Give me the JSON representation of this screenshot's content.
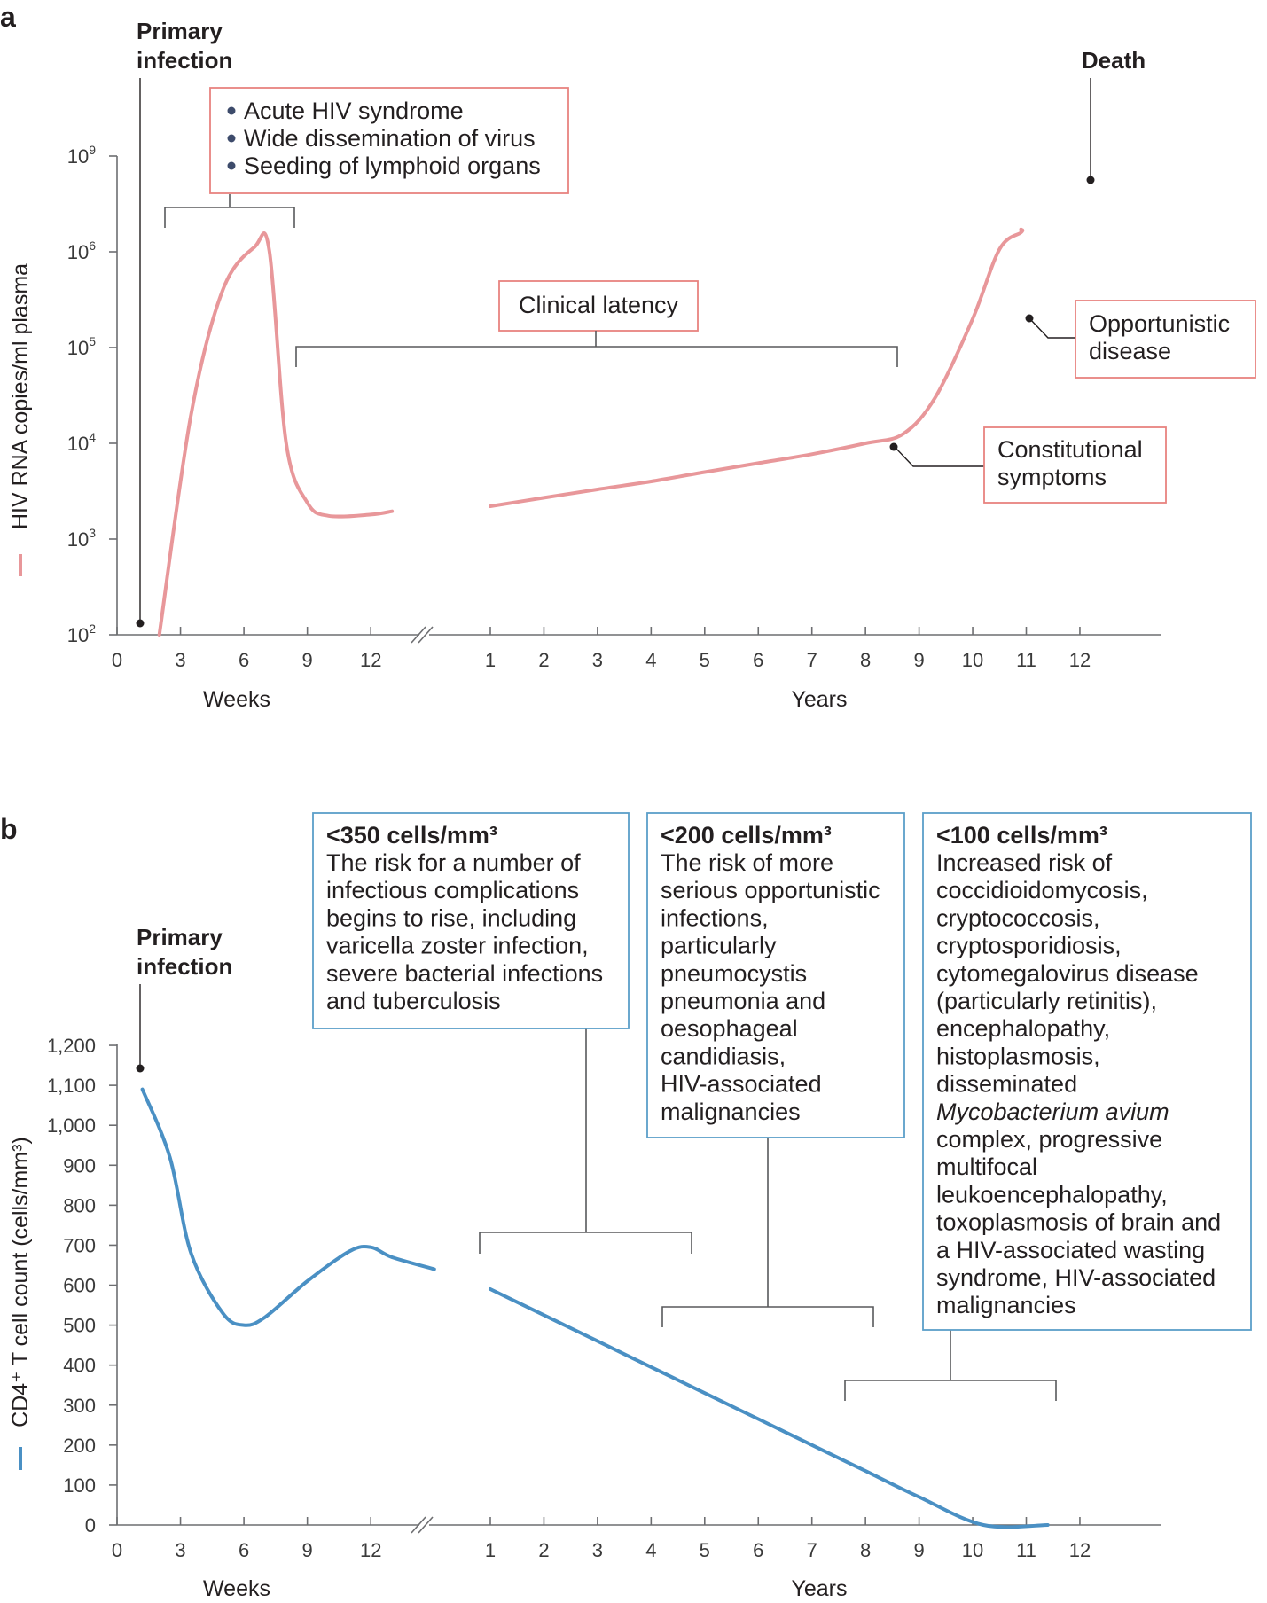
{
  "panel_a": {
    "letter": "a",
    "primary_infection": [
      "Primary",
      "infection"
    ],
    "death": "Death",
    "acute_bullets": [
      "Acute HIV syndrome",
      "Wide dissemination of virus",
      "Seeding of lymphoid organs"
    ],
    "clinical_latency": "Clinical latency",
    "opportunistic": [
      "Opportunistic",
      "disease"
    ],
    "constitutional": [
      "Constitutional",
      "symptoms"
    ],
    "bullet_color": "#3d4b6b",
    "line_color": "#e8979a",
    "box_border": "#e8837f"
  },
  "panel_b": {
    "letter": "b",
    "primary_infection": [
      "Primary",
      "infection"
    ],
    "line_color": "#4a90c4",
    "box_border": "#5b9fc9",
    "box350": {
      "title": "<350 cells/mm³",
      "lines": [
        "The risk for a number of",
        "infectious complications",
        "begins to rise, including",
        "varicella zoster infection,",
        "severe bacterial infections",
        "and tuberculosis"
      ]
    },
    "box200": {
      "title": "<200 cells/mm³",
      "lines": [
        "The risk of more",
        "serious opportunistic",
        "infections,",
        "particularly",
        "pneumocystis",
        "pneumonia and",
        "oesophageal",
        "candidiasis,",
        "HIV-associated",
        "malignancies"
      ]
    },
    "box100": {
      "title": "<100 cells/mm³",
      "lines": [
        "Increased risk of",
        "coccidioidomycosis,",
        "cryptococcosis,",
        "cryptosporidiosis,",
        "cytomegalovirus disease",
        "(particularly retinitis),",
        "encephalopathy,",
        "histoplasmosis,",
        "disseminated",
        "Mycobacterium avium",
        "complex, progressive",
        "multifocal",
        "leukoencephalopathy,",
        "toxoplasmosis of brain and",
        "a HIV-associated wasting",
        "syndrome, HIV-associated",
        "malignancies"
      ],
      "italic_line": 9
    }
  },
  "chart_data": [
    {
      "type": "line",
      "ylabel": "HIV RNA copies/ml plasma",
      "y_scale": "log",
      "y_ticks": [
        {
          "base": "10",
          "exp": "2",
          "value": 100
        },
        {
          "base": "10",
          "exp": "3",
          "value": 1000
        },
        {
          "base": "10",
          "exp": "4",
          "value": 10000
        },
        {
          "base": "10",
          "exp": "5",
          "value": 100000
        },
        {
          "base": "10",
          "exp": "6",
          "value": 1000000
        },
        {
          "base": "10",
          "exp": "9",
          "value": 1000000000
        }
      ],
      "x_week_ticks": [
        "0",
        "3",
        "6",
        "9",
        "12"
      ],
      "x_year_ticks": [
        "1",
        "2",
        "3",
        "4",
        "5",
        "6",
        "7",
        "8",
        "9",
        "10",
        "11",
        "12"
      ],
      "xlabel_weeks": "Weeks",
      "xlabel_years": "Years",
      "series": [
        {
          "segments": [
            {
              "unit": "weeks",
              "points": [
                [
                  2,
                  100
                ],
                [
                  3.5,
                  20000
                ],
                [
                  5,
                  400000
                ],
                [
                  6.5,
                  1400000
                ],
                [
                  7.2,
                  1100000
                ],
                [
                  8,
                  10000
                ],
                [
                  9,
                  2400
                ],
                [
                  10,
                  1750
                ],
                [
                  12,
                  1800
                ],
                [
                  13,
                  1950
                ]
              ]
            },
            {
              "unit": "years",
              "points": [
                [
                  1,
                  2200
                ],
                [
                  2,
                  2700
                ],
                [
                  3,
                  3300
                ],
                [
                  4,
                  4000
                ],
                [
                  5,
                  5000
                ],
                [
                  6,
                  6200
                ],
                [
                  7,
                  7700
                ],
                [
                  8,
                  10000
                ],
                [
                  8.7,
                  12500
                ],
                [
                  9.3,
                  30000
                ],
                [
                  10,
                  200000
                ],
                [
                  10.5,
                  1200000
                ],
                [
                  10.9,
                  4000000
                ],
                [
                  10.9,
                  5000000
                ]
              ]
            }
          ]
        }
      ],
      "markers": [
        {
          "label": "Primary infection",
          "unit": "weeks",
          "x": 1.1,
          "y": 120
        },
        {
          "label": "Constitutional symptoms",
          "unit": "years",
          "x": 7.7,
          "y": 8700
        },
        {
          "label": "Opportunistic disease",
          "unit": "years",
          "x": 9.9,
          "y": 190000
        },
        {
          "label": "Death",
          "unit": "years",
          "x": 10.9,
          "y": 5500000
        }
      ]
    },
    {
      "type": "line",
      "ylabel": "CD4⁺ T cell count (cells/mm³)",
      "y_ticks": [
        "0",
        "100",
        "200",
        "300",
        "400",
        "500",
        "600",
        "700",
        "800",
        "900",
        "1,000",
        "1,100",
        "1,200"
      ],
      "ylim": [
        0,
        1200
      ],
      "x_week_ticks": [
        "0",
        "3",
        "6",
        "9",
        "12"
      ],
      "x_year_ticks": [
        "1",
        "2",
        "3",
        "4",
        "5",
        "6",
        "7",
        "8",
        "9",
        "10",
        "11",
        "12"
      ],
      "xlabel_weeks": "Weeks",
      "xlabel_years": "Years",
      "series": [
        {
          "segments": [
            {
              "unit": "weeks",
              "points": [
                [
                  1.2,
                  1090
                ],
                [
                  2.5,
                  920
                ],
                [
                  3.5,
                  680
                ],
                [
                  5,
                  530
                ],
                [
                  6,
                  500
                ],
                [
                  7,
                  520
                ],
                [
                  9,
                  610
                ],
                [
                  11,
                  685
                ],
                [
                  12,
                  695
                ],
                [
                  13,
                  670
                ],
                [
                  15,
                  640
                ]
              ]
            },
            {
              "unit": "years",
              "points": [
                [
                  1,
                  590
                ],
                [
                  2,
                  525
                ],
                [
                  3,
                  460
                ],
                [
                  4,
                  395
                ],
                [
                  5,
                  330
                ],
                [
                  6,
                  265
                ],
                [
                  7,
                  200
                ],
                [
                  8,
                  135
                ],
                [
                  9,
                  70
                ],
                [
                  10.2,
                  0
                ],
                [
                  11.4,
                  0
                ]
              ]
            }
          ]
        }
      ],
      "markers": [
        {
          "label": "Primary infection",
          "unit": "weeks",
          "x": 1.2,
          "y": 1110
        }
      ],
      "brackets": [
        {
          "label": "<350 cells/mm³",
          "from_year": 0.95,
          "to_year": 4.4
        },
        {
          "label": "<200 cells/mm³",
          "from_year": 3.9,
          "to_year": 7.4
        },
        {
          "label": "<100 cells/mm³",
          "from_year": 6.9,
          "to_year": 10.3
        }
      ]
    }
  ]
}
